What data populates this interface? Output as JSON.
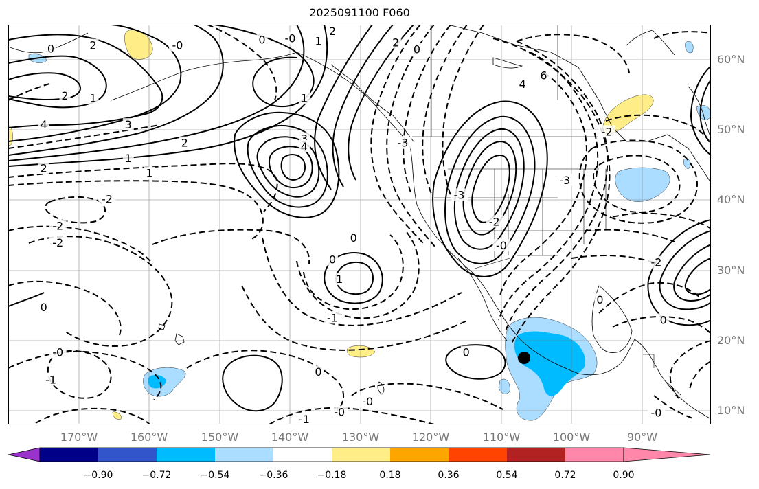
{
  "title": "2025091100 F060",
  "lon_labels": [
    "170°W",
    "160°W",
    "150°W",
    "140°W",
    "130°W",
    "120°W",
    "110°W",
    "100°W",
    "90°W"
  ],
  "lat_labels": [
    "60°N",
    "50°N",
    "40°N",
    "30°N",
    "20°N",
    "10°N"
  ],
  "colorbar": {
    "ticks": [
      "−0.90",
      "−0.72",
      "−0.54",
      "−0.36",
      "−0.18",
      "0.18",
      "0.36",
      "0.54",
      "0.72",
      "0.90"
    ],
    "colors": [
      "#9933cc",
      "#000088",
      "#3355cc",
      "#00bbff",
      "#aaddff",
      "#ffffff",
      "#ffee88",
      "#ffa500",
      "#ff4400",
      "#b22222",
      "#ff88aa"
    ]
  },
  "contour_labels": [
    {
      "text": "0",
      "lon": -174,
      "lat": 61.5
    },
    {
      "text": "2",
      "lon": -168,
      "lat": 62
    },
    {
      "text": "-0",
      "lon": -156,
      "lat": 62
    },
    {
      "text": "0",
      "lon": -144,
      "lat": 62.8
    },
    {
      "text": "-0",
      "lon": -140,
      "lat": 63
    },
    {
      "text": "2",
      "lon": -134,
      "lat": 64
    },
    {
      "text": "1",
      "lon": -136,
      "lat": 62.6
    },
    {
      "text": "2",
      "lon": -125,
      "lat": 62.4
    },
    {
      "text": "0",
      "lon": -122,
      "lat": 61.4
    },
    {
      "text": "6",
      "lon": -104,
      "lat": 57.7
    },
    {
      "text": "4",
      "lon": -107,
      "lat": 56.5
    },
    {
      "text": "2",
      "lon": -172,
      "lat": 54.8
    },
    {
      "text": "1",
      "lon": -168,
      "lat": 54.5
    },
    {
      "text": "1",
      "lon": -138,
      "lat": 54.5
    },
    {
      "text": "4",
      "lon": -175,
      "lat": 50.7
    },
    {
      "text": "3",
      "lon": -163,
      "lat": 50.7
    },
    {
      "text": "2",
      "lon": -155,
      "lat": 48.1
    },
    {
      "text": "3",
      "lon": -138,
      "lat": 48.7
    },
    {
      "text": "4",
      "lon": -138,
      "lat": 47.6
    },
    {
      "text": "1",
      "lon": -163,
      "lat": 45.9
    },
    {
      "text": "2",
      "lon": -175,
      "lat": 44.5
    },
    {
      "text": "1",
      "lon": -160,
      "lat": 43.8
    },
    {
      "text": "-3",
      "lon": -124,
      "lat": 48.1
    },
    {
      "text": "-2",
      "lon": -166,
      "lat": 40.1
    },
    {
      "text": "-2",
      "lon": -173,
      "lat": 36.3
    },
    {
      "text": "-2",
      "lon": -173,
      "lat": 33.9
    },
    {
      "text": "-3",
      "lon": -116,
      "lat": 40.7
    },
    {
      "text": "-2",
      "lon": -111,
      "lat": 36.9
    },
    {
      "text": "-0",
      "lon": -110,
      "lat": 33.5
    },
    {
      "text": "0",
      "lon": -131,
      "lat": 34.6
    },
    {
      "text": "0",
      "lon": -134,
      "lat": 31.5
    },
    {
      "text": "1",
      "lon": -133,
      "lat": 28.7
    },
    {
      "text": "-3",
      "lon": -101,
      "lat": 42.8
    },
    {
      "text": "-2",
      "lon": -95,
      "lat": 49.7
    },
    {
      "text": "-2",
      "lon": -88,
      "lat": 31.1
    },
    {
      "text": "0",
      "lon": -96,
      "lat": 25.8
    },
    {
      "text": "0",
      "lon": -87,
      "lat": 22.9
    },
    {
      "text": "0",
      "lon": -175,
      "lat": 24.7
    },
    {
      "text": "-1",
      "lon": -134,
      "lat": 23.2
    },
    {
      "text": "-0",
      "lon": -173,
      "lat": 18.3
    },
    {
      "text": "-1",
      "lon": -174,
      "lat": 14.4
    },
    {
      "text": "0",
      "lon": -136,
      "lat": 15.5
    },
    {
      "text": "0",
      "lon": -115,
      "lat": 18.3
    },
    {
      "text": "-0",
      "lon": -129,
      "lat": 11.3
    },
    {
      "text": "-0",
      "lon": -133,
      "lat": 9.8
    },
    {
      "text": "-1",
      "lon": -138,
      "lat": 8.8
    },
    {
      "text": "-0",
      "lon": -88,
      "lat": 9.7
    }
  ]
}
